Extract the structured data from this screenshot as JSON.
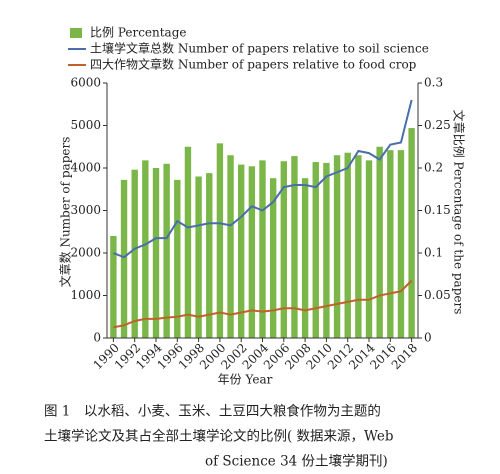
{
  "chart_data": {
    "type": "bar-line",
    "legend_position": "top",
    "x": [
      1990,
      1991,
      1992,
      1993,
      1994,
      1995,
      1996,
      1997,
      1998,
      1999,
      2000,
      2001,
      2002,
      2003,
      2004,
      2005,
      2006,
      2007,
      2008,
      2009,
      2010,
      2011,
      2012,
      2013,
      2014,
      2015,
      2016,
      2017,
      2018
    ],
    "xlim": [
      1989.4,
      2018.6
    ],
    "xticks": [
      1990,
      1992,
      1994,
      1996,
      1998,
      2000,
      2002,
      2004,
      2006,
      2008,
      2010,
      2012,
      2014,
      2016,
      2018
    ],
    "xlabel": "年份 Year",
    "ylabel": "文章数 Number of papers",
    "y2label": "文章比例 Percentage of the papers",
    "ylim": [
      0,
      6000
    ],
    "yticks": [
      0,
      1000,
      2000,
      3000,
      4000,
      5000,
      6000
    ],
    "y2lim": [
      0,
      0.3
    ],
    "y2ticks": [
      0,
      0.05,
      0.1,
      0.15,
      0.2,
      0.25,
      0.3
    ],
    "series": [
      {
        "name": "比例 Percentage",
        "kind": "bar",
        "axis": "y2",
        "color": "#7ab648",
        "values": [
          0.12,
          0.186,
          0.198,
          0.209,
          0.2,
          0.205,
          0.186,
          0.225,
          0.19,
          0.194,
          0.229,
          0.215,
          0.204,
          0.202,
          0.209,
          0.188,
          0.208,
          0.214,
          0.188,
          0.207,
          0.206,
          0.215,
          0.218,
          0.215,
          0.209,
          0.225,
          0.221,
          0.221,
          0.247
        ]
      },
      {
        "name": "土壤学文章总数 Number of papers relative to soil science",
        "kind": "line",
        "color": "#4a6ea9",
        "values": [
          2000,
          1900,
          2100,
          2200,
          2350,
          2350,
          2750,
          2600,
          2650,
          2700,
          2700,
          2650,
          2850,
          3100,
          3000,
          3200,
          3550,
          3600,
          3600,
          3550,
          3800,
          3900,
          4000,
          4400,
          4350,
          4200,
          4550,
          4600,
          5600
        ]
      },
      {
        "name": "四大作物文章数 Number of papers relative to food crop",
        "kind": "line",
        "color": "#c0622a",
        "values": [
          250,
          300,
          400,
          450,
          450,
          480,
          500,
          550,
          500,
          550,
          600,
          550,
          600,
          650,
          620,
          650,
          700,
          700,
          650,
          700,
          750,
          800,
          850,
          900,
          900,
          1000,
          1050,
          1100,
          1350
        ]
      }
    ],
    "caption": [
      "图 1　以水稻、小麦、玉米、土豆四大粮食作物为主题的",
      "土壤学论文及其占全部土壤学论文的比例( 数据来源，Web",
      "of Science 34 份土壤学期刊)"
    ]
  }
}
